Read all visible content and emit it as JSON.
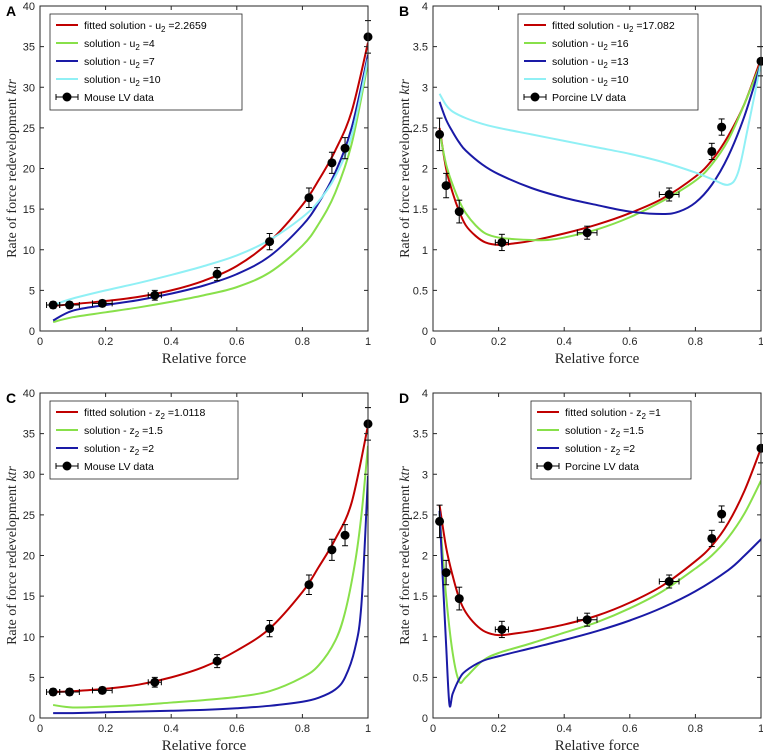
{
  "chart_data": [
    {
      "type": "line",
      "panel_label": "A",
      "xlabel": "Relative force",
      "ylabel_prefix": "Rate of force redevelopment ",
      "ylabel_italic": "ktr",
      "xlim": [
        0,
        1
      ],
      "ylim": [
        0,
        40
      ],
      "xticks": [
        0,
        0.2,
        0.4,
        0.6,
        0.8,
        1
      ],
      "yticks": [
        0,
        5,
        10,
        15,
        20,
        25,
        30,
        35,
        40
      ],
      "xtick_labels": [
        "0",
        "0.2",
        "0.4",
        "0.6",
        "0.8",
        "1"
      ],
      "ytick_labels": [
        "0",
        "5",
        "10",
        "15",
        "20",
        "25",
        "30",
        "35",
        "40"
      ],
      "legend_position": "top-left",
      "series": [
        {
          "name": "fitted solution - u2 =2.2659",
          "legend": {
            "pre": "fitted solution - u",
            "sub": "2",
            "post": " =2.2659"
          },
          "color": "#c00000",
          "x": [
            0.04,
            0.1,
            0.2,
            0.3,
            0.4,
            0.5,
            0.6,
            0.7,
            0.8,
            0.85,
            0.9,
            0.95,
            1.0
          ],
          "y": [
            3.1,
            3.3,
            3.7,
            4.2,
            5.0,
            6.2,
            8.0,
            11.0,
            15.5,
            18.6,
            22.2,
            27.0,
            35.5
          ]
        },
        {
          "name": "solution - u2 =4",
          "legend": {
            "pre": "solution - u",
            "sub": "2",
            "post": " =4"
          },
          "color": "#88e04a",
          "x": [
            0.04,
            0.1,
            0.2,
            0.3,
            0.4,
            0.5,
            0.6,
            0.7,
            0.8,
            0.85,
            0.9,
            0.95,
            1.0
          ],
          "y": [
            1.1,
            1.7,
            2.3,
            2.9,
            3.6,
            4.4,
            5.4,
            7.2,
            10.5,
            13.2,
            17.0,
            23.0,
            33.0
          ]
        },
        {
          "name": "solution - u2 =7",
          "legend": {
            "pre": "solution - u",
            "sub": "2",
            "post": " =7"
          },
          "color": "#1a1aa6",
          "x": [
            0.04,
            0.1,
            0.2,
            0.3,
            0.4,
            0.5,
            0.6,
            0.7,
            0.8,
            0.85,
            0.9,
            0.95,
            1.0
          ],
          "y": [
            1.3,
            2.5,
            3.2,
            3.8,
            4.6,
            5.6,
            7.0,
            9.2,
            13.0,
            15.8,
            19.5,
            25.0,
            34.0
          ]
        },
        {
          "name": "solution - u2 =10",
          "legend": {
            "pre": "solution - u",
            "sub": "2",
            "post": " =10"
          },
          "color": "#90f0f5",
          "x": [
            0.04,
            0.1,
            0.2,
            0.3,
            0.4,
            0.5,
            0.6,
            0.7,
            0.8,
            0.85,
            0.9,
            0.95,
            1.0
          ],
          "y": [
            3.2,
            4.0,
            5.0,
            5.9,
            6.9,
            8.0,
            9.3,
            11.2,
            14.0,
            16.0,
            19.0,
            24.0,
            33.5
          ]
        }
      ],
      "data_points": {
        "name": "Mouse LV data",
        "color": "#000000",
        "x": [
          0.04,
          0.09,
          0.19,
          0.35,
          0.54,
          0.7,
          0.82,
          0.89,
          0.93,
          1.0
        ],
        "y": [
          3.2,
          3.2,
          3.4,
          4.4,
          7.0,
          11.0,
          16.4,
          20.7,
          22.5,
          36.2
        ],
        "yerr": [
          0.4,
          0.4,
          0.4,
          0.6,
          0.8,
          1.0,
          1.2,
          1.3,
          1.3,
          2.0
        ],
        "xerr": [
          0.02,
          0.03,
          0.03,
          0.02,
          0.0,
          0.0,
          0.0,
          0.0,
          0.0,
          0.0
        ]
      }
    },
    {
      "type": "line",
      "panel_label": "B",
      "xlabel": "Relative force",
      "ylabel_prefix": "Rate of force redevelopment ",
      "ylabel_italic": "ktr",
      "xlim": [
        0,
        1
      ],
      "ylim": [
        0,
        4
      ],
      "xticks": [
        0,
        0.2,
        0.4,
        0.6,
        0.8,
        1
      ],
      "yticks": [
        0,
        0.5,
        1,
        1.5,
        2,
        2.5,
        3,
        3.5,
        4
      ],
      "xtick_labels": [
        "0",
        "0.2",
        "0.4",
        "0.6",
        "0.8",
        "1"
      ],
      "ytick_labels": [
        "0",
        "0.5",
        "1",
        "1.5",
        "2",
        "2.5",
        "3",
        "3.5",
        "4"
      ],
      "legend_position": "top-center",
      "series": [
        {
          "name": "fitted solution - u2 =17.082",
          "legend": {
            "pre": "fitted solution - u",
            "sub": "2",
            "post": " =17.082"
          },
          "color": "#c00000",
          "x": [
            0.02,
            0.04,
            0.06,
            0.08,
            0.1,
            0.13,
            0.16,
            0.2,
            0.25,
            0.3,
            0.4,
            0.5,
            0.6,
            0.7,
            0.8,
            0.85,
            0.9,
            0.95,
            1.0
          ],
          "y": [
            2.5,
            2.0,
            1.7,
            1.47,
            1.3,
            1.17,
            1.09,
            1.06,
            1.08,
            1.11,
            1.2,
            1.31,
            1.45,
            1.63,
            1.9,
            2.1,
            2.4,
            2.8,
            3.35
          ]
        },
        {
          "name": "solution - u2 =16",
          "legend": {
            "pre": "solution - u",
            "sub": "2",
            "post": " =16"
          },
          "color": "#88e04a",
          "x": [
            0.02,
            0.04,
            0.06,
            0.08,
            0.1,
            0.13,
            0.16,
            0.2,
            0.25,
            0.3,
            0.35,
            0.4,
            0.5,
            0.6,
            0.7,
            0.8,
            0.85,
            0.9,
            0.95,
            1.0
          ],
          "y": [
            2.45,
            2.05,
            1.8,
            1.6,
            1.45,
            1.3,
            1.2,
            1.15,
            1.13,
            1.12,
            1.12,
            1.15,
            1.25,
            1.4,
            1.6,
            1.85,
            2.05,
            2.35,
            2.8,
            3.3
          ]
        },
        {
          "name": "solution - u2 =13",
          "legend": {
            "pre": "solution - u",
            "sub": "2",
            "post": " =13"
          },
          "color": "#1a1aa6",
          "x": [
            0.02,
            0.04,
            0.06,
            0.08,
            0.1,
            0.15,
            0.2,
            0.3,
            0.4,
            0.5,
            0.6,
            0.7,
            0.75,
            0.8,
            0.85,
            0.9,
            0.95,
            1.0
          ],
          "y": [
            2.82,
            2.6,
            2.45,
            2.32,
            2.22,
            2.05,
            1.93,
            1.76,
            1.64,
            1.55,
            1.47,
            1.44,
            1.47,
            1.58,
            1.8,
            2.15,
            2.65,
            3.3
          ]
        },
        {
          "name": "solution - u2 =10",
          "legend": {
            "pre": "solution - u",
            "sub": "2",
            "post": " =10"
          },
          "color": "#90f0f5",
          "x": [
            0.02,
            0.04,
            0.06,
            0.1,
            0.15,
            0.2,
            0.3,
            0.4,
            0.5,
            0.6,
            0.7,
            0.8,
            0.85,
            0.9,
            0.93,
            0.96,
            1.0
          ],
          "y": [
            2.92,
            2.78,
            2.7,
            2.62,
            2.55,
            2.5,
            2.42,
            2.34,
            2.26,
            2.18,
            2.08,
            1.95,
            1.87,
            1.8,
            1.95,
            2.5,
            3.3
          ]
        }
      ],
      "data_points": {
        "name": "Porcine LV data",
        "color": "#000000",
        "x": [
          0.02,
          0.04,
          0.08,
          0.21,
          0.47,
          0.72,
          0.85,
          0.88,
          1.0
        ],
        "y": [
          2.42,
          1.79,
          1.47,
          1.09,
          1.21,
          1.68,
          2.21,
          2.51,
          3.32
        ],
        "yerr": [
          0.2,
          0.15,
          0.14,
          0.1,
          0.08,
          0.08,
          0.1,
          0.1,
          0.18
        ],
        "xerr": [
          0.0,
          0.0,
          0.0,
          0.02,
          0.03,
          0.03,
          0.0,
          0.0,
          0.0
        ]
      }
    },
    {
      "type": "line",
      "panel_label": "C",
      "xlabel": "Relative force",
      "ylabel_prefix": "Rate of force redevelopment ",
      "ylabel_italic": "ktr",
      "xlim": [
        0,
        1
      ],
      "ylim": [
        0,
        40
      ],
      "xticks": [
        0,
        0.2,
        0.4,
        0.6,
        0.8,
        1
      ],
      "yticks": [
        0,
        5,
        10,
        15,
        20,
        25,
        30,
        35,
        40
      ],
      "xtick_labels": [
        "0",
        "0.2",
        "0.4",
        "0.6",
        "0.8",
        "1"
      ],
      "ytick_labels": [
        "0",
        "5",
        "10",
        "15",
        "20",
        "25",
        "30",
        "35",
        "40"
      ],
      "legend_position": "top-left",
      "series": [
        {
          "name": "fitted solution - z2 =1.0118",
          "legend": {
            "pre": "fitted solution - z",
            "sub": "2",
            "post": " =1.0118"
          },
          "color": "#c00000",
          "x": [
            0.04,
            0.1,
            0.2,
            0.3,
            0.4,
            0.5,
            0.6,
            0.7,
            0.8,
            0.85,
            0.9,
            0.95,
            1.0
          ],
          "y": [
            3.2,
            3.3,
            3.6,
            4.1,
            5.0,
            6.3,
            8.3,
            11.0,
            15.5,
            18.6,
            22.0,
            26.5,
            36.0
          ]
        },
        {
          "name": "solution - z2 =1.5",
          "legend": {
            "pre": "solution - z",
            "sub": "2",
            "post": " =1.5"
          },
          "color": "#88e04a",
          "x": [
            0.04,
            0.1,
            0.2,
            0.3,
            0.4,
            0.5,
            0.6,
            0.7,
            0.8,
            0.85,
            0.9,
            0.93,
            0.96,
            0.98,
            1.0
          ],
          "y": [
            1.6,
            1.3,
            1.4,
            1.6,
            1.9,
            2.2,
            2.6,
            3.3,
            5.0,
            6.5,
            9.5,
            13.0,
            19.0,
            25.0,
            33.5
          ]
        },
        {
          "name": "solution - z2 =2",
          "legend": {
            "pre": "solution - z",
            "sub": "2",
            "post": " =2"
          },
          "color": "#1a1aa6",
          "x": [
            0.04,
            0.1,
            0.2,
            0.3,
            0.4,
            0.5,
            0.6,
            0.7,
            0.8,
            0.85,
            0.9,
            0.93,
            0.96,
            0.98,
            1.0
          ],
          "y": [
            0.6,
            0.6,
            0.7,
            0.8,
            0.9,
            1.0,
            1.2,
            1.5,
            2.0,
            2.5,
            3.5,
            5.0,
            8.5,
            14.0,
            29.8
          ]
        }
      ],
      "data_points": {
        "name": "Mouse LV data",
        "color": "#000000",
        "x": [
          0.04,
          0.09,
          0.19,
          0.35,
          0.54,
          0.7,
          0.82,
          0.89,
          0.93,
          1.0
        ],
        "y": [
          3.2,
          3.2,
          3.4,
          4.4,
          7.0,
          11.0,
          16.4,
          20.7,
          22.5,
          36.2
        ],
        "yerr": [
          0.4,
          0.4,
          0.4,
          0.6,
          0.8,
          1.0,
          1.2,
          1.3,
          1.3,
          2.0
        ],
        "xerr": [
          0.02,
          0.03,
          0.03,
          0.02,
          0.0,
          0.0,
          0.0,
          0.0,
          0.0,
          0.0
        ]
      }
    },
    {
      "type": "line",
      "panel_label": "D",
      "xlabel": "Relative force",
      "ylabel_prefix": "Rate of force redevelopment ",
      "ylabel_italic": "ktr",
      "xlim": [
        0,
        1
      ],
      "ylim": [
        0,
        4
      ],
      "xticks": [
        0,
        0.2,
        0.4,
        0.6,
        0.8,
        1
      ],
      "yticks": [
        0,
        0.5,
        1,
        1.5,
        2,
        2.5,
        3,
        3.5,
        4
      ],
      "xtick_labels": [
        "0",
        "0.2",
        "0.4",
        "0.6",
        "0.8",
        "1"
      ],
      "ytick_labels": [
        "0",
        "0.5",
        "1",
        "1.5",
        "2",
        "2.5",
        "3",
        "3.5",
        "4"
      ],
      "legend_position": "top-center",
      "series": [
        {
          "name": "fitted solution - z2 =1",
          "legend": {
            "pre": "fitted solution - z",
            "sub": "2",
            "post": " =1"
          },
          "color": "#c00000",
          "x": [
            0.02,
            0.04,
            0.06,
            0.08,
            0.1,
            0.13,
            0.16,
            0.2,
            0.25,
            0.3,
            0.4,
            0.5,
            0.6,
            0.7,
            0.8,
            0.85,
            0.9,
            0.95,
            1.0
          ],
          "y": [
            2.62,
            2.1,
            1.75,
            1.47,
            1.3,
            1.15,
            1.06,
            1.02,
            1.04,
            1.07,
            1.15,
            1.26,
            1.42,
            1.63,
            1.93,
            2.12,
            2.4,
            2.8,
            3.32
          ]
        },
        {
          "name": "solution - z2 =1.5",
          "legend": {
            "pre": "solution - z",
            "sub": "2",
            "post": " =1.5"
          },
          "color": "#88e04a",
          "x": [
            0.02,
            0.04,
            0.06,
            0.08,
            0.1,
            0.15,
            0.2,
            0.3,
            0.4,
            0.5,
            0.6,
            0.7,
            0.8,
            0.85,
            0.9,
            0.95,
            1.0
          ],
          "y": [
            2.52,
            1.5,
            0.8,
            0.45,
            0.5,
            0.7,
            0.8,
            0.92,
            1.05,
            1.18,
            1.35,
            1.56,
            1.84,
            2.0,
            2.22,
            2.52,
            2.92
          ]
        },
        {
          "name": "solution - z2 =2",
          "legend": {
            "pre": "solution - z",
            "sub": "2",
            "post": " =2"
          },
          "color": "#1a1aa6",
          "x": [
            0.02,
            0.03,
            0.04,
            0.05,
            0.06,
            0.08,
            0.1,
            0.15,
            0.2,
            0.3,
            0.4,
            0.5,
            0.6,
            0.7,
            0.8,
            0.9,
            0.95,
            1.0
          ],
          "y": [
            2.55,
            1.7,
            0.9,
            0.17,
            0.3,
            0.48,
            0.58,
            0.7,
            0.76,
            0.86,
            0.96,
            1.07,
            1.2,
            1.36,
            1.56,
            1.82,
            2.0,
            2.2
          ]
        }
      ],
      "data_points": {
        "name": "Porcine LV data",
        "color": "#000000",
        "x": [
          0.02,
          0.04,
          0.08,
          0.21,
          0.47,
          0.72,
          0.85,
          0.88,
          1.0
        ],
        "y": [
          2.42,
          1.79,
          1.47,
          1.09,
          1.21,
          1.68,
          2.21,
          2.51,
          3.32
        ],
        "yerr": [
          0.2,
          0.15,
          0.14,
          0.1,
          0.08,
          0.08,
          0.1,
          0.1,
          0.18
        ],
        "xerr": [
          0.0,
          0.0,
          0.0,
          0.02,
          0.03,
          0.03,
          0.0,
          0.0,
          0.0
        ]
      }
    }
  ]
}
